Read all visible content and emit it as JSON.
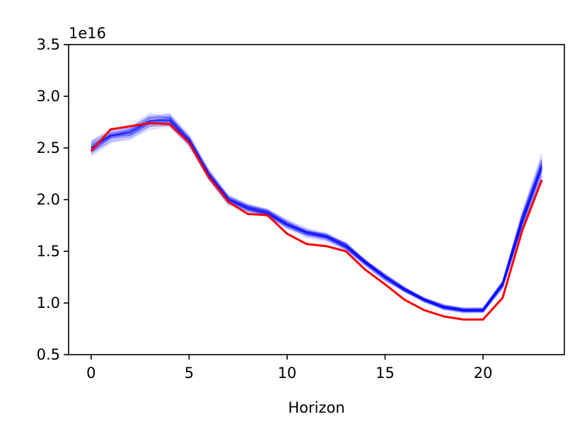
{
  "chart_data": {
    "type": "line",
    "title": "",
    "xlabel": "Horizon",
    "ylabel": "",
    "y_offset_text": "1e16",
    "xlim": [
      -1.15,
      24.15
    ],
    "ylim": [
      0.5,
      3.5
    ],
    "x_ticks": [
      0,
      5,
      10,
      15,
      20
    ],
    "x_tick_labels": [
      "0",
      "5",
      "10",
      "15",
      "20"
    ],
    "y_ticks": [
      0.5,
      1.0,
      1.5,
      2.0,
      2.5,
      3.0,
      3.5
    ],
    "y_tick_labels": [
      "0.5",
      "1.0",
      "1.5",
      "2.0",
      "2.5",
      "3.0",
      "3.5"
    ],
    "grid": false,
    "legend": "none",
    "x": [
      0,
      1,
      2,
      3,
      4,
      5,
      6,
      7,
      8,
      9,
      10,
      11,
      12,
      13,
      14,
      15,
      16,
      17,
      18,
      19,
      20,
      21,
      22,
      23
    ],
    "series": [
      {
        "role": "actual",
        "color": "#ff0000",
        "values": [
          2.47,
          2.68,
          2.71,
          2.74,
          2.73,
          2.55,
          2.22,
          1.98,
          1.86,
          1.85,
          1.67,
          1.57,
          1.55,
          1.5,
          1.32,
          1.18,
          1.03,
          0.93,
          0.87,
          0.84,
          0.84,
          1.05,
          1.7,
          2.19
        ]
      },
      {
        "role": "sample-median",
        "color": "#0000ff",
        "values": [
          2.5,
          2.62,
          2.65,
          2.76,
          2.77,
          2.57,
          2.24,
          2.0,
          1.92,
          1.87,
          1.76,
          1.68,
          1.64,
          1.55,
          1.39,
          1.25,
          1.13,
          1.03,
          0.96,
          0.93,
          0.93,
          1.18,
          1.8,
          2.32
        ]
      }
    ],
    "sample_band": {
      "color": "#0000ff",
      "count": 100,
      "spread": [
        0.09,
        0.08,
        0.08,
        0.09,
        0.08,
        0.07,
        0.06,
        0.06,
        0.05,
        0.05,
        0.05,
        0.05,
        0.05,
        0.05,
        0.04,
        0.04,
        0.03,
        0.03,
        0.03,
        0.03,
        0.03,
        0.05,
        0.1,
        0.14
      ]
    }
  }
}
